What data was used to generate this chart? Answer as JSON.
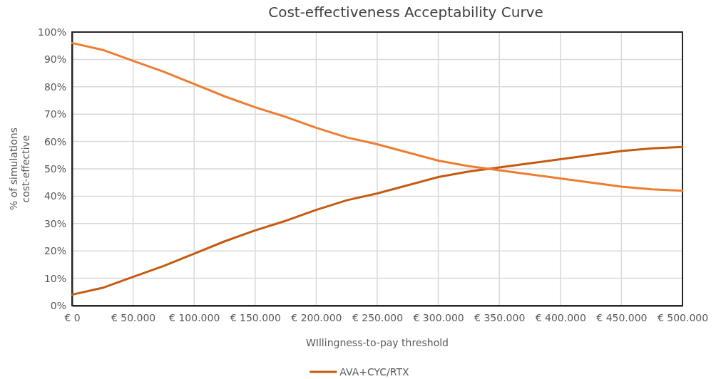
{
  "chart_data": {
    "type": "line",
    "title": "Cost-effectiveness  Acceptability Curve",
    "xlabel": "WIllingness-to-pay threshold",
    "ylabel": "% of simulations cost-effective",
    "x": [
      0,
      25000,
      50000,
      75000,
      100000,
      125000,
      150000,
      175000,
      200000,
      225000,
      250000,
      275000,
      300000,
      325000,
      350000,
      375000,
      400000,
      425000,
      450000,
      475000,
      500000
    ],
    "series": [
      {
        "name": "AVA+CYC/RTX",
        "color": "#c55a11",
        "values": [
          4,
          6.5,
          10.5,
          14.5,
          19,
          23.5,
          27.5,
          31,
          35,
          38.5,
          41,
          44,
          47,
          49,
          50.5,
          52,
          53.5,
          55,
          56.5,
          57.5,
          58
        ]
      },
      {
        "color": "#ed7d31",
        "values": [
          96,
          93.5,
          89.5,
          85.5,
          81,
          76.5,
          72.5,
          69,
          65,
          61.5,
          59,
          56,
          53,
          51,
          49.5,
          48,
          46.5,
          45,
          43.5,
          42.5,
          42
        ]
      }
    ],
    "xlim": [
      0,
      500000
    ],
    "xticks": [
      {
        "value": 0,
        "label": "€ 0"
      },
      {
        "value": 50000,
        "label": "€ 50.000"
      },
      {
        "value": 100000,
        "label": "€ 100.000"
      },
      {
        "value": 150000,
        "label": "€ 150.000"
      },
      {
        "value": 200000,
        "label": "€ 200.000"
      },
      {
        "value": 250000,
        "label": "€ 250.000"
      },
      {
        "value": 300000,
        "label": "€ 300.000"
      },
      {
        "value": 350000,
        "label": "€ 350.000"
      },
      {
        "value": 400000,
        "label": "€ 400.000"
      },
      {
        "value": 450000,
        "label": "€ 450.000"
      },
      {
        "value": 500000,
        "label": "€ 500.000"
      }
    ],
    "ylim": [
      0,
      100
    ],
    "yticks": [
      {
        "value": 0,
        "label": "0%"
      },
      {
        "value": 10,
        "label": "10%"
      },
      {
        "value": 20,
        "label": "20%"
      },
      {
        "value": 30,
        "label": "30%"
      },
      {
        "value": 40,
        "label": "40%"
      },
      {
        "value": 50,
        "label": "50%"
      },
      {
        "value": 60,
        "label": "60%"
      },
      {
        "value": 70,
        "label": "70%"
      },
      {
        "value": 80,
        "label": "80%"
      },
      {
        "value": 90,
        "label": "90%"
      },
      {
        "value": 100,
        "label": "100%"
      }
    ],
    "grid": true,
    "legend": "bottom",
    "marker": "none",
    "line_style": "solid"
  }
}
